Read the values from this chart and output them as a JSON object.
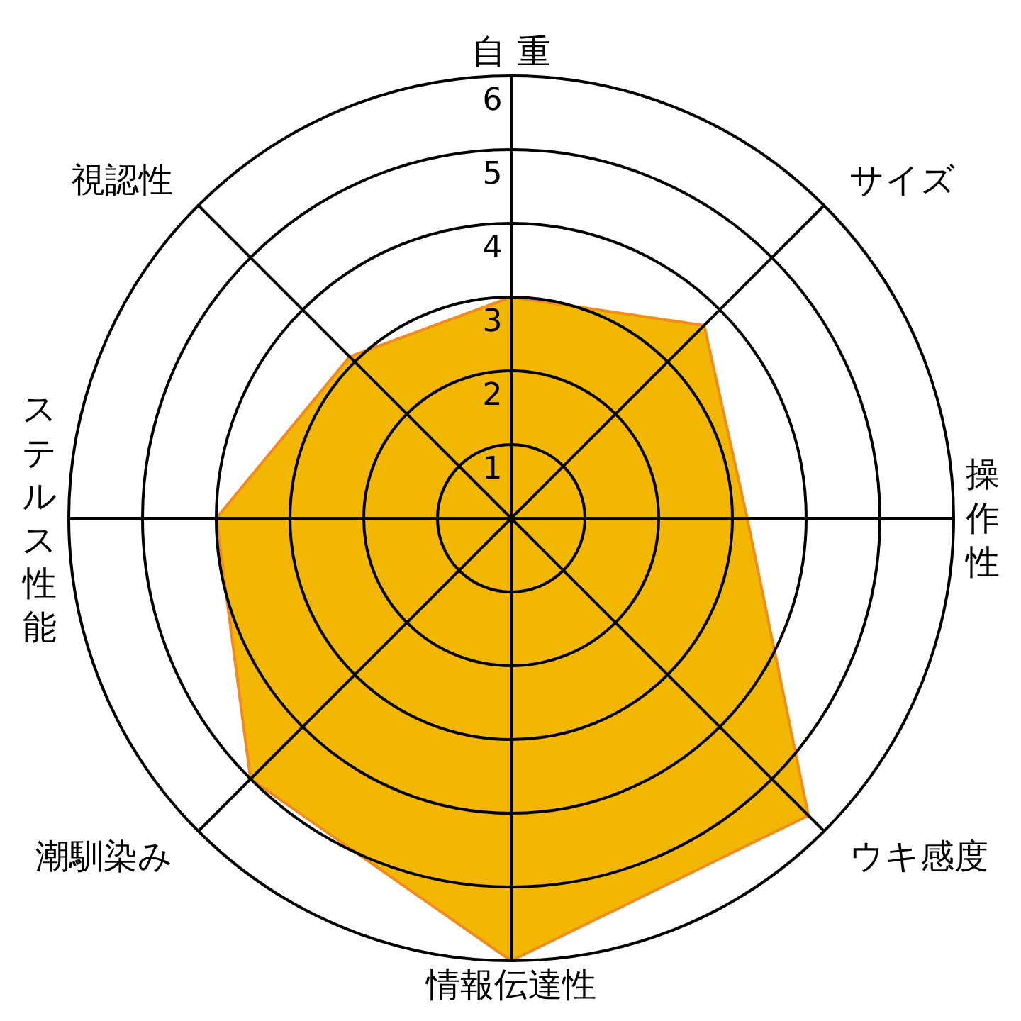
{
  "chart_data": {
    "type": "radar",
    "categories": [
      "自 重",
      "サイズ",
      "操作性",
      "ウキ感度",
      "情報伝達性",
      "潮馴染み",
      "ステルス性能",
      "視認性"
    ],
    "series": [
      {
        "color": "#f2b705",
        "values": [
          3,
          3.7,
          3.2,
          5.7,
          6,
          5,
          4,
          3.1
        ]
      }
    ],
    "ylim": [
      0,
      6
    ],
    "yticks": [
      1,
      2,
      3,
      4,
      5,
      6
    ],
    "grid": true
  }
}
